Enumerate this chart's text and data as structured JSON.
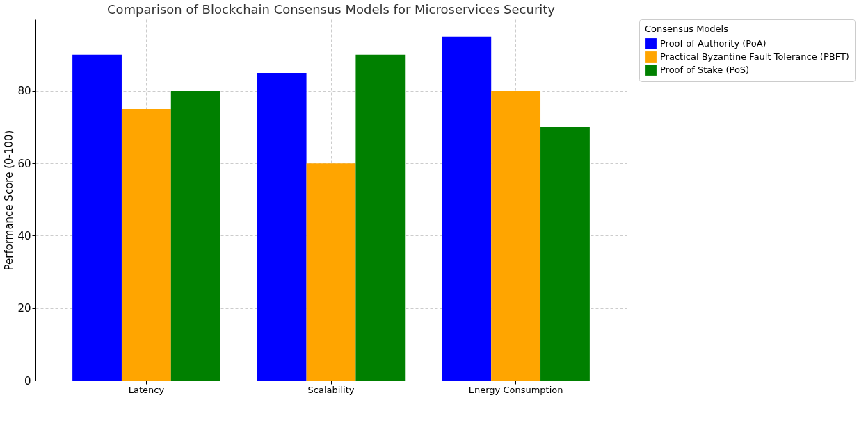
{
  "chart_data": {
    "type": "bar",
    "title": "Comparison of Blockchain Consensus Models for Microservices Security",
    "ylabel": "Performance Score (0-100)",
    "legend_title": "Consensus Models",
    "categories": [
      "Latency",
      "Scalability",
      "Energy Consumption"
    ],
    "series": [
      {
        "name": "Proof of Authority (PoA)",
        "color": "#0000ff",
        "values": [
          90,
          85,
          95
        ]
      },
      {
        "name": "Practical Byzantine Fault Tolerance (PBFT)",
        "color": "#ffa500",
        "values": [
          75,
          60,
          80
        ]
      },
      {
        "name": "Proof of Stake (PoS)",
        "color": "#008000",
        "values": [
          80,
          90,
          70
        ]
      }
    ],
    "ylim": [
      0,
      99.75
    ],
    "yticks": [
      0,
      20,
      40,
      60,
      80
    ],
    "grid": true,
    "legend": "top right"
  }
}
